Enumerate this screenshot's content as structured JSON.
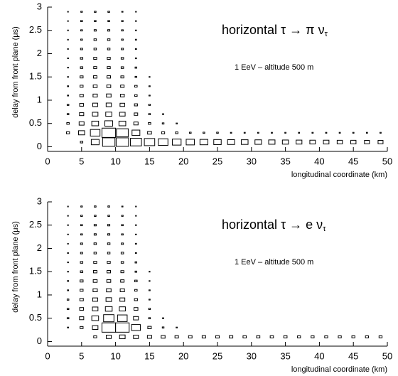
{
  "chart_data": [
    {
      "type": "box2d",
      "title": "horizontal τ → π ν",
      "title_subscript": "τ",
      "subtitle": "1 EeV – altitude 500 m",
      "x_label": "longitudinal coordinate (km)",
      "y_label": "delay from front plane (μs)",
      "xlim": [
        0,
        50
      ],
      "ylim": [
        -0.1,
        3
      ],
      "xticks": [
        0,
        5,
        10,
        15,
        20,
        25,
        30,
        35,
        40,
        45,
        50
      ],
      "yticks": [
        0,
        0.5,
        1,
        1.5,
        2,
        2.5,
        3
      ],
      "x": [
        3,
        5,
        7,
        9,
        11,
        13,
        15,
        17,
        19,
        21,
        23,
        25,
        27,
        29,
        31,
        33,
        35,
        37,
        39,
        41,
        43,
        45,
        47,
        49
      ],
      "y": [
        0.1,
        0.3,
        0.5,
        0.7,
        0.9,
        1.1,
        1.3,
        1.5,
        1.7,
        1.9,
        2.1,
        2.3,
        2.5,
        2.7,
        2.9
      ],
      "values": [
        [
          0,
          2,
          20,
          50,
          50,
          40,
          35,
          30,
          25,
          22,
          20,
          18,
          16,
          15,
          14,
          13,
          12,
          11,
          10,
          10,
          9,
          9,
          8,
          8
        ],
        [
          3,
          12,
          30,
          60,
          45,
          20,
          5,
          3,
          2,
          1,
          1,
          1,
          0.5,
          0.5,
          0.5,
          0.5,
          0.5,
          0.5,
          0.5,
          0.5,
          0.5,
          0.5,
          0.5,
          0.5
        ],
        [
          2,
          8,
          15,
          20,
          15,
          6,
          2,
          1,
          0.5,
          0,
          0,
          0,
          0,
          0,
          0,
          0,
          0,
          0,
          0,
          0,
          0,
          0,
          0,
          0
        ],
        [
          1,
          6,
          10,
          12,
          10,
          4,
          1,
          0.5,
          0,
          0,
          0,
          0,
          0,
          0,
          0,
          0,
          0,
          0,
          0,
          0,
          0,
          0,
          0,
          0
        ],
        [
          1,
          5,
          8,
          9,
          7,
          3,
          1,
          0,
          0,
          0,
          0,
          0,
          0,
          0,
          0,
          0,
          0,
          0,
          0,
          0,
          0,
          0,
          0,
          0
        ],
        [
          0.5,
          4,
          6,
          7,
          5,
          2,
          0.5,
          0,
          0,
          0,
          0,
          0,
          0,
          0,
          0,
          0,
          0,
          0,
          0,
          0,
          0,
          0,
          0,
          0
        ],
        [
          0.5,
          3,
          5,
          5,
          4,
          2,
          0.5,
          0,
          0,
          0,
          0,
          0,
          0,
          0,
          0,
          0,
          0,
          0,
          0,
          0,
          0,
          0,
          0,
          0
        ],
        [
          0.3,
          3,
          4,
          4,
          3,
          1,
          0.3,
          0,
          0,
          0,
          0,
          0,
          0,
          0,
          0,
          0,
          0,
          0,
          0,
          0,
          0,
          0,
          0,
          0
        ],
        [
          0.3,
          2,
          3,
          3,
          2,
          1,
          0,
          0,
          0,
          0,
          0,
          0,
          0,
          0,
          0,
          0,
          0,
          0,
          0,
          0,
          0,
          0,
          0,
          0
        ],
        [
          0.3,
          2,
          3,
          3,
          2,
          0.5,
          0,
          0,
          0,
          0,
          0,
          0,
          0,
          0,
          0,
          0,
          0,
          0,
          0,
          0,
          0,
          0,
          0,
          0
        ],
        [
          0.2,
          1.5,
          2,
          2,
          1.5,
          0.5,
          0,
          0,
          0,
          0,
          0,
          0,
          0,
          0,
          0,
          0,
          0,
          0,
          0,
          0,
          0,
          0,
          0,
          0
        ],
        [
          0.2,
          1,
          2,
          2,
          1,
          0.5,
          0,
          0,
          0,
          0,
          0,
          0,
          0,
          0,
          0,
          0,
          0,
          0,
          0,
          0,
          0,
          0,
          0,
          0
        ],
        [
          0.2,
          1,
          1.5,
          1.5,
          1,
          0.3,
          0,
          0,
          0,
          0,
          0,
          0,
          0,
          0,
          0,
          0,
          0,
          0,
          0,
          0,
          0,
          0,
          0,
          0
        ],
        [
          0.1,
          1,
          1,
          1,
          0.8,
          0.3,
          0,
          0,
          0,
          0,
          0,
          0,
          0,
          0,
          0,
          0,
          0,
          0,
          0,
          0,
          0,
          0,
          0,
          0
        ],
        [
          0.1,
          0.8,
          1,
          1,
          0.5,
          0.2,
          0,
          0,
          0,
          0,
          0,
          0,
          0,
          0,
          0,
          0,
          0,
          0,
          0,
          0,
          0,
          0,
          0,
          0
        ]
      ]
    },
    {
      "type": "box2d",
      "title": "horizontal τ → e ν",
      "title_subscript": "τ",
      "subtitle": "1 EeV – altitude 500 m",
      "x_label": "longitudinal coordinate (km)",
      "y_label": "delay from front plane (μs)",
      "xlim": [
        0,
        50
      ],
      "ylim": [
        -0.1,
        3
      ],
      "xticks": [
        0,
        5,
        10,
        15,
        20,
        25,
        30,
        35,
        40,
        45,
        50
      ],
      "yticks": [
        0,
        0.5,
        1,
        1.5,
        2,
        2.5,
        3
      ],
      "x": [
        3,
        5,
        7,
        9,
        11,
        13,
        15,
        17,
        19,
        21,
        23,
        25,
        27,
        29,
        31,
        33,
        35,
        37,
        39,
        41,
        43,
        45,
        47,
        49
      ],
      "y": [
        0.1,
        0.3,
        0.5,
        0.7,
        0.9,
        1.1,
        1.3,
        1.5,
        1.7,
        1.9,
        2.1,
        2.3,
        2.5,
        2.7,
        2.9
      ],
      "values": [
        [
          0,
          0,
          3,
          8,
          10,
          8,
          6,
          5,
          4,
          4,
          4,
          4,
          4,
          3.5,
          3.5,
          3.5,
          3.5,
          3,
          3,
          3,
          3,
          3,
          3,
          3
        ],
        [
          0.5,
          3,
          10,
          60,
          60,
          25,
          4,
          1,
          0.5,
          0,
          0,
          0,
          0,
          0,
          0,
          0,
          0,
          0,
          0,
          0,
          0,
          0,
          0,
          0
        ],
        [
          1,
          6,
          15,
          35,
          30,
          8,
          1,
          0.5,
          0,
          0,
          0,
          0,
          0,
          0,
          0,
          0,
          0,
          0,
          0,
          0,
          0,
          0,
          0,
          0
        ],
        [
          1,
          5,
          10,
          15,
          12,
          5,
          1,
          0,
          0,
          0,
          0,
          0,
          0,
          0,
          0,
          0,
          0,
          0,
          0,
          0,
          0,
          0,
          0,
          0
        ],
        [
          1,
          4,
          8,
          10,
          8,
          3,
          0.5,
          0,
          0,
          0,
          0,
          0,
          0,
          0,
          0,
          0,
          0,
          0,
          0,
          0,
          0,
          0,
          0,
          0
        ],
        [
          0.5,
          3,
          6,
          7,
          6,
          2,
          0.5,
          0,
          0,
          0,
          0,
          0,
          0,
          0,
          0,
          0,
          0,
          0,
          0,
          0,
          0,
          0,
          0,
          0
        ],
        [
          0.5,
          3,
          5,
          5,
          4,
          2,
          0.3,
          0,
          0,
          0,
          0,
          0,
          0,
          0,
          0,
          0,
          0,
          0,
          0,
          0,
          0,
          0,
          0,
          0
        ],
        [
          0.3,
          2,
          4,
          4,
          3,
          1,
          0.3,
          0,
          0,
          0,
          0,
          0,
          0,
          0,
          0,
          0,
          0,
          0,
          0,
          0,
          0,
          0,
          0,
          0
        ],
        [
          0.3,
          2,
          3,
          3,
          2,
          1,
          0,
          0,
          0,
          0,
          0,
          0,
          0,
          0,
          0,
          0,
          0,
          0,
          0,
          0,
          0,
          0,
          0,
          0
        ],
        [
          0.3,
          1.5,
          2,
          2,
          2,
          0.5,
          0,
          0,
          0,
          0,
          0,
          0,
          0,
          0,
          0,
          0,
          0,
          0,
          0,
          0,
          0,
          0,
          0,
          0
        ],
        [
          0.2,
          1.5,
          2,
          2,
          1.5,
          0.5,
          0,
          0,
          0,
          0,
          0,
          0,
          0,
          0,
          0,
          0,
          0,
          0,
          0,
          0,
          0,
          0,
          0,
          0
        ],
        [
          0.2,
          1,
          1.5,
          1.5,
          1,
          0.3,
          0,
          0,
          0,
          0,
          0,
          0,
          0,
          0,
          0,
          0,
          0,
          0,
          0,
          0,
          0,
          0,
          0,
          0
        ],
        [
          0.2,
          1,
          1.5,
          1.5,
          1,
          0.3,
          0,
          0,
          0,
          0,
          0,
          0,
          0,
          0,
          0,
          0,
          0,
          0,
          0,
          0,
          0,
          0,
          0,
          0
        ],
        [
          0.1,
          1,
          1,
          1,
          0.8,
          0.2,
          0,
          0,
          0,
          0,
          0,
          0,
          0,
          0,
          0,
          0,
          0,
          0,
          0,
          0,
          0,
          0,
          0,
          0
        ],
        [
          0.1,
          0.8,
          1,
          1,
          0.5,
          0.2,
          0,
          0,
          0,
          0,
          0,
          0,
          0,
          0,
          0,
          0,
          0,
          0,
          0,
          0,
          0,
          0,
          0,
          0
        ]
      ]
    }
  ]
}
